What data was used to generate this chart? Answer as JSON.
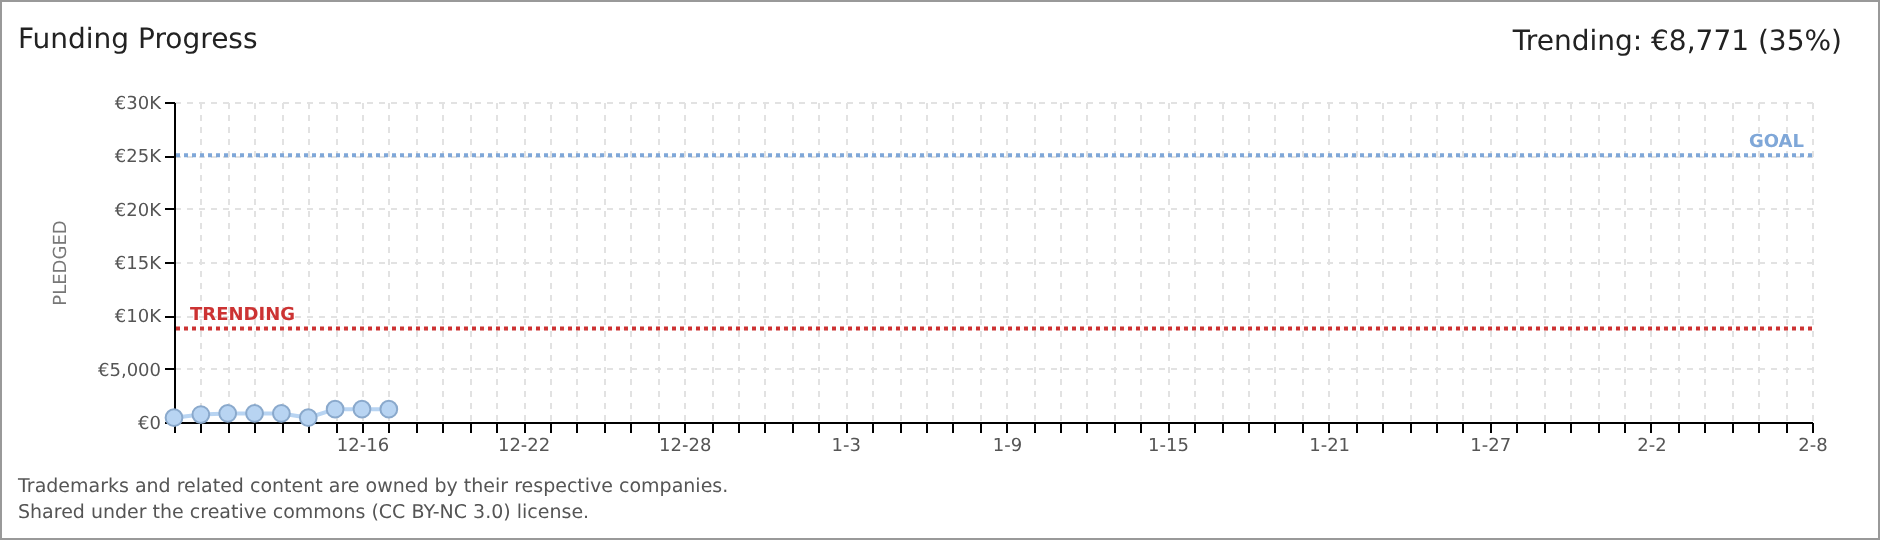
{
  "chart_data": {
    "type": "line",
    "title": "Funding Progress",
    "ylabel": "PLEDGED",
    "annotations": [
      "Trending: €8,771 (35%)",
      "Trademarks and related content are owned by their respective companies.",
      "Shared under the creative commons (CC BY-NC 3.0) license."
    ],
    "categories": [
      null,
      null,
      null,
      null,
      null,
      null,
      null,
      "12-16",
      null,
      null,
      null,
      null,
      null,
      "12-22",
      null,
      null,
      null,
      null,
      null,
      "12-28",
      null,
      null,
      null,
      null,
      null,
      "1-3",
      null,
      null,
      null,
      null,
      null,
      "1-9",
      null,
      null,
      null,
      null,
      null,
      "1-15",
      null,
      null,
      null,
      null,
      null,
      "1-21",
      null,
      null,
      null,
      null,
      null,
      "1-27",
      null,
      null,
      null,
      null,
      null,
      "2-2",
      null,
      null,
      null,
      null,
      null,
      "2-8"
    ],
    "series": [
      {
        "color": "#b8d4f2",
        "values": [
          400,
          700,
          800,
          800,
          800,
          400,
          1200,
          1200,
          1200,
          null,
          null,
          null,
          null,
          null,
          null,
          null,
          null,
          null,
          null,
          null,
          null,
          null,
          null,
          null,
          null,
          null,
          null,
          null,
          null,
          null,
          null,
          null,
          null,
          null,
          null,
          null,
          null,
          null,
          null,
          null,
          null,
          null,
          null,
          null,
          null,
          null,
          null,
          null,
          null,
          null,
          null,
          null,
          null,
          null,
          null,
          null,
          null,
          null,
          null,
          null,
          null,
          null
        ]
      }
    ],
    "ylim": [
      0,
      30000
    ],
    "yticks": [
      {
        "value": 0,
        "label": "€0"
      },
      {
        "value": 5000,
        "label": "€5,000"
      },
      {
        "value": 10000,
        "label": "€10K"
      },
      {
        "value": 15000,
        "label": "€15K"
      },
      {
        "value": 20000,
        "label": "€20K"
      },
      {
        "value": 25000,
        "label": "€25K"
      },
      {
        "value": 30000,
        "label": "€30K"
      }
    ],
    "ref_lines": [
      {
        "axis": "y",
        "value": 25000,
        "label": "GOAL",
        "color": "#7fa7d8",
        "line_style": "dotted"
      },
      {
        "axis": "y",
        "value": 8771,
        "label": "TRENDING",
        "color": "#cc3333",
        "line_style": "dotted"
      }
    ],
    "grid": true,
    "marker": "circle"
  }
}
